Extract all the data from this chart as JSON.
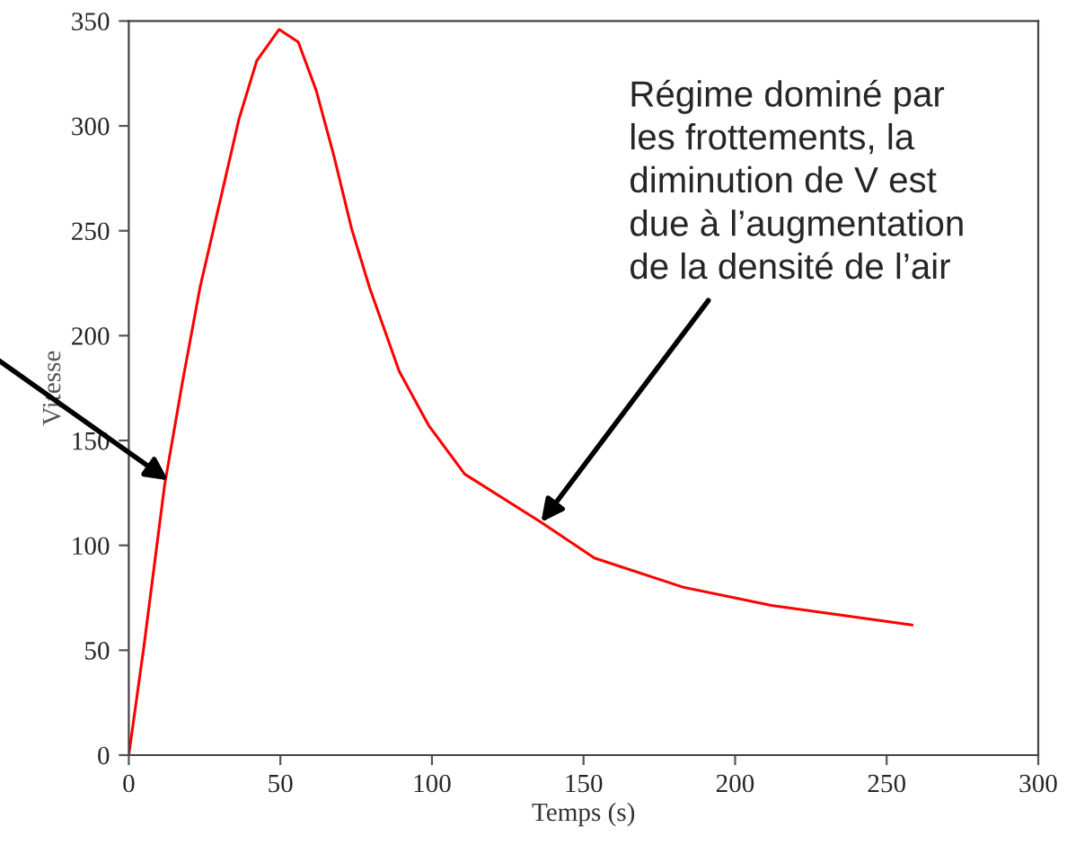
{
  "chart_data": {
    "type": "line",
    "xlabel": "Temps (s)",
    "ylabel": "Vitesse",
    "x": [
      0,
      5,
      11.8,
      17.6,
      23.5,
      30.4,
      36.3,
      42.2,
      49.6,
      55.9,
      61.8,
      67.6,
      73.5,
      79.4,
      89.2,
      99,
      110.8,
      136,
      153.6,
      183,
      212,
      258.4
    ],
    "series": [
      {
        "color": "#ff0000",
        "values": [
          0,
          52,
          128.6,
          177,
          223,
          266,
          303,
          331,
          346,
          340,
          317,
          286,
          251,
          223,
          183,
          157,
          134,
          111,
          94,
          80,
          71.4,
          62
        ]
      }
    ],
    "xlim": [
      0,
      300
    ],
    "xticks": [
      0,
      50,
      100,
      150,
      200,
      250,
      300
    ],
    "ylim": [
      0,
      350
    ],
    "yticks": [
      0,
      50,
      100,
      150,
      200,
      250,
      300,
      350
    ],
    "grid": false,
    "legend": false,
    "marker": "none",
    "line_style": "solid",
    "annotations": [
      {
        "text": "Régime dominé par\nles frottements, la\ndiminution de V est\ndue à l’augmentation\nde la densité de l’air",
        "x": 136,
        "y": 111
      }
    ]
  }
}
